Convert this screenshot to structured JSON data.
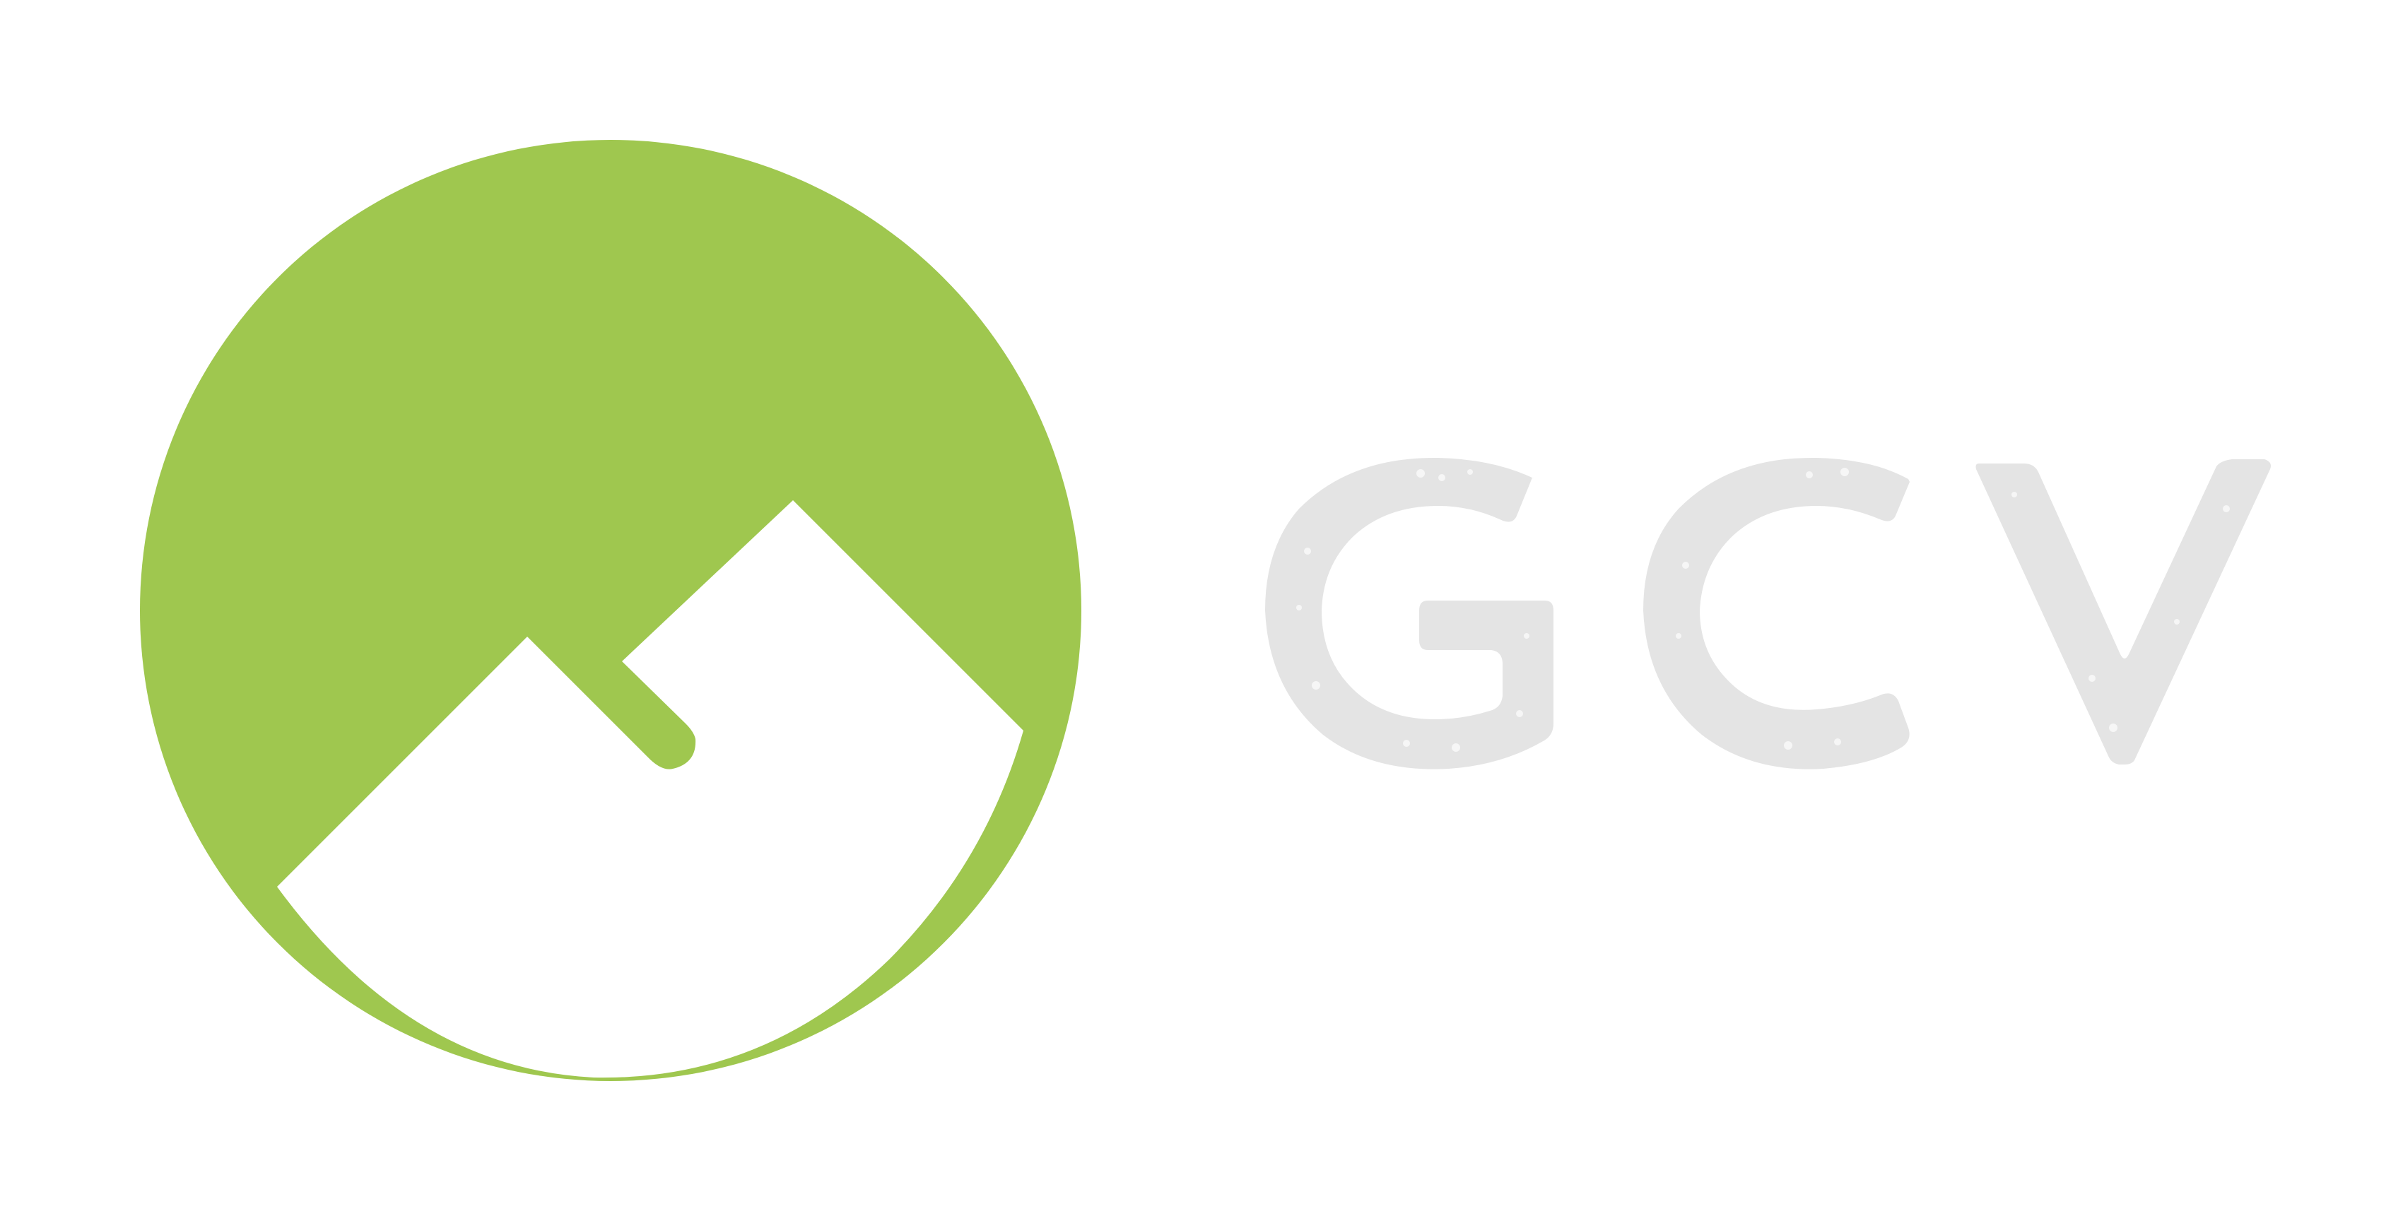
{
  "brand": {
    "wordmark": "GCV",
    "logo_icon": "mountain-in-circle-icon"
  },
  "colors": {
    "background": "#ffffff",
    "emblem_green": "#9fc74f",
    "wordmark_gray": "#e4e4e4",
    "texture_light": "#f6f6f6"
  }
}
